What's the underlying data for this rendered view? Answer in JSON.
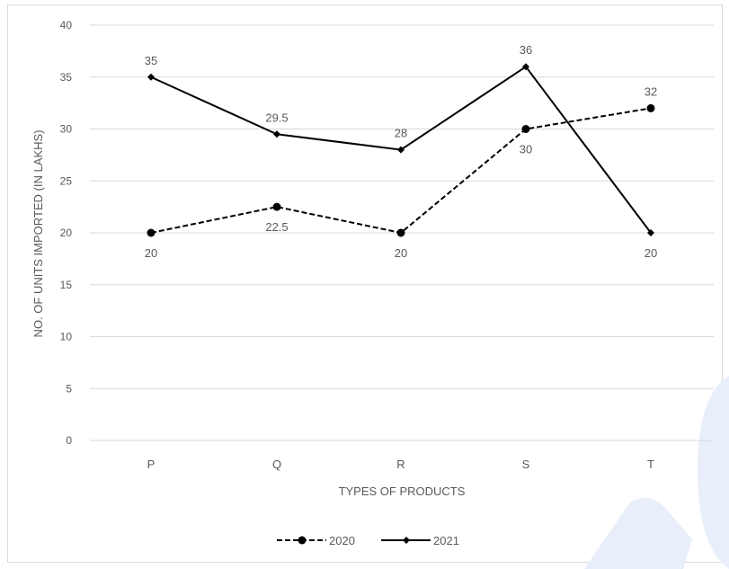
{
  "chart_data": {
    "type": "line",
    "categories": [
      "P",
      "Q",
      "R",
      "S",
      "T"
    ],
    "series": [
      {
        "name": "2020",
        "values": [
          20,
          22.5,
          20,
          30,
          32
        ],
        "style": "dashed",
        "color": "#000000"
      },
      {
        "name": "2021",
        "values": [
          35,
          29.5,
          28,
          36,
          20
        ],
        "style": "solid",
        "color": "#000000"
      }
    ],
    "data_labels": {
      "2020": [
        "20",
        "22.5",
        "20",
        "30",
        "32"
      ],
      "2021": [
        "35",
        "29.5",
        "28",
        "36",
        "20"
      ]
    },
    "xlabel": "TYPES OF PRODUCTS",
    "ylabel": "NO. OF UNITS IMPORTED (IN LAKHS)",
    "ylim": [
      0,
      40
    ],
    "yticks": [
      0,
      5,
      10,
      15,
      20,
      25,
      30,
      35,
      40
    ],
    "grid": true,
    "legend": "bottom",
    "gridline_color": "#d9d9d9",
    "watermark_color": "#e8eefa"
  }
}
